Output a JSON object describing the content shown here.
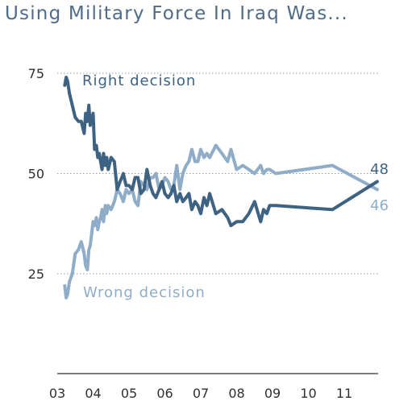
{
  "title": "Using Military Force In Iraq Was...",
  "colors": {
    "right": "#3d6282",
    "wrong": "#8fadc8",
    "grid": "#999999",
    "title": "#4e6c89"
  },
  "chart_data": {
    "type": "line",
    "title": "Using Military Force In Iraq Was...",
    "xlabel": "",
    "ylabel": "",
    "ylim": [
      0,
      75
    ],
    "xlim": [
      2003,
      2012
    ],
    "grid": true,
    "y_ticks": [
      "75",
      "50",
      "25"
    ],
    "y_tick_values": [
      75,
      50,
      25
    ],
    "x_ticks": [
      "03",
      "04",
      "05",
      "06",
      "07",
      "08",
      "09",
      "10",
      "11"
    ],
    "x_tick_values": [
      2003,
      2004,
      2005,
      2006,
      2007,
      2008,
      2009,
      2010,
      2011
    ],
    "series": [
      {
        "name": "Right decision",
        "end_label": "48",
        "x": [
          2003.21,
          2003.25,
          2003.29,
          2003.34,
          2003.42,
          2003.5,
          2003.59,
          2003.67,
          2003.75,
          2003.79,
          2003.84,
          2003.88,
          2003.92,
          2004.0,
          2004.04,
          2004.09,
          2004.13,
          2004.17,
          2004.21,
          2004.25,
          2004.29,
          2004.34,
          2004.38,
          2004.42,
          2004.5,
          2004.59,
          2004.67,
          2004.75,
          2004.8,
          2004.84,
          2004.92,
          2005.0,
          2005.09,
          2005.17,
          2005.25,
          2005.33,
          2005.42,
          2005.5,
          2005.59,
          2005.67,
          2005.75,
          2005.84,
          2005.92,
          2006.0,
          2006.09,
          2006.17,
          2006.25,
          2006.33,
          2006.42,
          2006.5,
          2006.59,
          2006.67,
          2006.75,
          2006.84,
          2006.92,
          2007.0,
          2007.09,
          2007.17,
          2007.25,
          2007.42,
          2007.59,
          2007.75,
          2007.84,
          2008.0,
          2008.17,
          2008.34,
          2008.5,
          2008.67,
          2008.75,
          2008.84,
          2008.92,
          2009.09,
          2010.67,
          2011.92
        ],
        "values": [
          72,
          74,
          73,
          70,
          67,
          64,
          63,
          63,
          60,
          65,
          63,
          67,
          62,
          65,
          56,
          57,
          54,
          55,
          53,
          51,
          55,
          52,
          54,
          51,
          54,
          53,
          46,
          48,
          49,
          50,
          47,
          47,
          46,
          49,
          49,
          45,
          46,
          51,
          47,
          45,
          44,
          46,
          48,
          45,
          44,
          45,
          47,
          43,
          45,
          43,
          44,
          45,
          41,
          43,
          42,
          40,
          44,
          42,
          45,
          40,
          41,
          39,
          37,
          38,
          38,
          40,
          43,
          38,
          41,
          40,
          42,
          42,
          41,
          48
        ]
      },
      {
        "name": "Wrong decision",
        "end_label": "46",
        "x": [
          2003.21,
          2003.25,
          2003.29,
          2003.34,
          2003.42,
          2003.5,
          2003.59,
          2003.67,
          2003.75,
          2003.79,
          2003.84,
          2003.88,
          2003.92,
          2004.0,
          2004.04,
          2004.09,
          2004.13,
          2004.17,
          2004.21,
          2004.25,
          2004.29,
          2004.34,
          2004.38,
          2004.42,
          2004.5,
          2004.59,
          2004.67,
          2004.75,
          2004.8,
          2004.84,
          2004.92,
          2005.0,
          2005.09,
          2005.17,
          2005.25,
          2005.33,
          2005.42,
          2005.5,
          2005.59,
          2005.67,
          2005.75,
          2005.84,
          2005.92,
          2006.0,
          2006.09,
          2006.17,
          2006.25,
          2006.33,
          2006.42,
          2006.5,
          2006.59,
          2006.67,
          2006.75,
          2006.84,
          2006.92,
          2007.0,
          2007.09,
          2007.17,
          2007.25,
          2007.42,
          2007.59,
          2007.75,
          2007.84,
          2008.0,
          2008.17,
          2008.34,
          2008.5,
          2008.67,
          2008.75,
          2008.84,
          2008.92,
          2009.09,
          2010.67,
          2011.92
        ],
        "values": [
          22,
          19,
          20,
          23,
          25,
          30,
          31,
          33,
          30,
          27,
          26,
          31,
          32,
          38,
          37,
          39,
          36,
          38,
          39,
          41,
          38,
          42,
          40,
          42,
          41,
          43,
          46,
          45,
          44,
          43,
          46,
          45,
          46,
          43,
          42,
          48,
          47,
          46,
          49,
          49,
          50,
          46,
          47,
          49,
          48,
          46,
          47,
          52,
          46,
          50,
          52,
          53,
          56,
          53,
          53,
          56,
          54,
          55,
          54,
          57,
          55,
          53,
          56,
          51,
          52,
          51,
          50,
          52,
          50,
          51,
          51,
          50,
          52,
          46
        ]
      }
    ]
  }
}
